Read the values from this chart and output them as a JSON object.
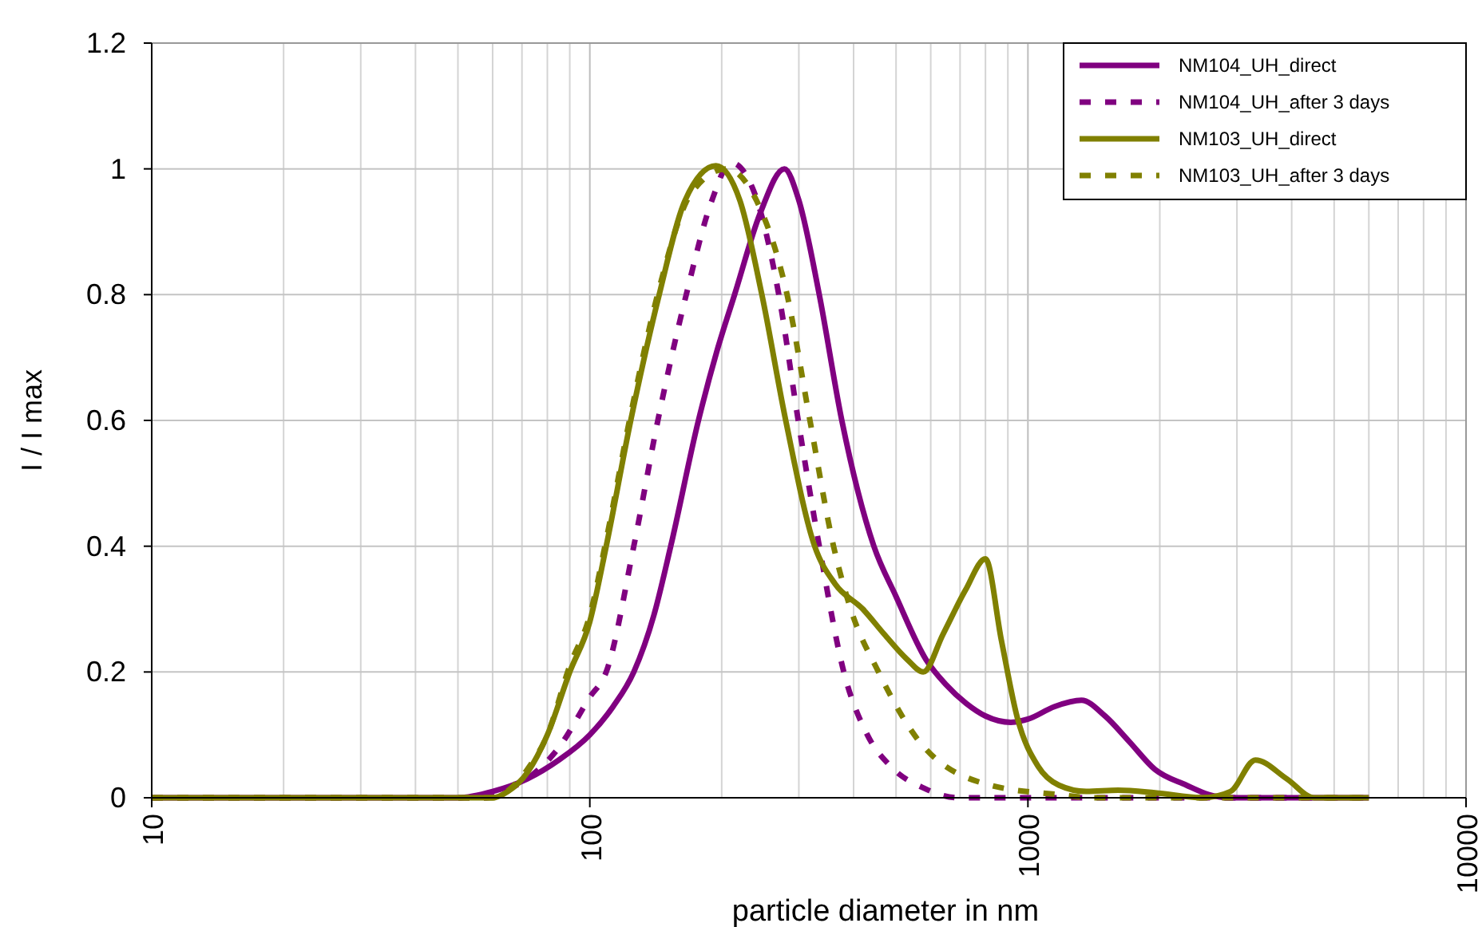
{
  "chart_data": {
    "type": "line",
    "xlabel": "particle diameter in nm",
    "ylabel": "I / I max",
    "log": "x",
    "xlim": [
      10,
      10000
    ],
    "xticks": [
      10,
      100,
      1000,
      10000
    ],
    "ylim": [
      0,
      1.2
    ],
    "yticks": [
      0,
      {
        "value": 0.2,
        "label": "0.2"
      },
      {
        "value": 0.4,
        "label": "0.4"
      },
      {
        "value": 0.6,
        "label": "0.6"
      },
      {
        "value": 0.8,
        "label": "0.8"
      },
      1,
      {
        "value": 1.2,
        "label": "1.2"
      }
    ],
    "grid": true,
    "legend": "top right",
    "series": [
      {
        "name": "NM104_UH_direct",
        "color": "#800080",
        "line_style": "solid",
        "x": [
          10,
          50,
          60,
          72,
          85,
          100,
          113,
          126,
          140,
          153,
          177,
          195,
          214,
          245,
          278,
          300,
          334,
          376,
          445,
          500,
          585,
          650,
          723,
          800,
          914,
          1000,
          1150,
          1325,
          1500,
          1700,
          1950,
          2300,
          2590,
          2890,
          6000
        ],
        "values": [
          0,
          0,
          0.01,
          0.03,
          0.06,
          0.1,
          0.145,
          0.2,
          0.29,
          0.4,
          0.6,
          0.71,
          0.8,
          0.93,
          1.0,
          0.95,
          0.8,
          0.6,
          0.4,
          0.32,
          0.22,
          0.18,
          0.15,
          0.13,
          0.12,
          0.125,
          0.145,
          0.155,
          0.13,
          0.09,
          0.045,
          0.02,
          0.005,
          0,
          0
        ]
      },
      {
        "name": "NM104_UH_after 3 days",
        "color": "#800080",
        "line_style": "dashed",
        "x": [
          10,
          58,
          66,
          75,
          85,
          100,
          109,
          126,
          143,
          166,
          190,
          210,
          235,
          270,
          299,
          334,
          380,
          430,
          486,
          580,
          694,
          6000
        ],
        "values": [
          0,
          0,
          0.015,
          0.04,
          0.08,
          0.16,
          0.2,
          0.4,
          0.6,
          0.8,
          0.95,
          1.01,
          0.97,
          0.8,
          0.6,
          0.4,
          0.2,
          0.1,
          0.05,
          0.015,
          0,
          0
        ]
      },
      {
        "name": "NM103_UH_direct",
        "color": "#808000",
        "line_style": "solid",
        "x": [
          10,
          60,
          65,
          72,
          80,
          90,
          100,
          109,
          124,
          144,
          165,
          194,
          220,
          247,
          280,
          326,
          363,
          420,
          470,
          530,
          577,
          640,
          720,
          800,
          870,
          946,
          1055,
          1177,
          1359,
          1607,
          1950,
          2500,
          2900,
          3305,
          3900,
          4500,
          6000
        ],
        "values": [
          0,
          0,
          0.01,
          0.04,
          0.1,
          0.2,
          0.28,
          0.4,
          0.6,
          0.8,
          0.95,
          1.005,
          0.95,
          0.8,
          0.6,
          0.4,
          0.34,
          0.3,
          0.26,
          0.22,
          0.2,
          0.26,
          0.33,
          0.38,
          0.25,
          0.127,
          0.05,
          0.02,
          0.01,
          0.012,
          0.008,
          0,
          0.01,
          0.06,
          0.03,
          0,
          0
        ]
      },
      {
        "name": "NM103_UH_after 3 days",
        "color": "#808000",
        "line_style": "dashed",
        "x": [
          10,
          60,
          66,
          72,
          80,
          90,
          100,
          109,
          124,
          144,
          170,
          205,
          240,
          282,
          318,
          360,
          394,
          456,
          572,
          820,
          1177,
          1400,
          6000
        ],
        "values": [
          0,
          0,
          0.015,
          0.045,
          0.1,
          0.21,
          0.29,
          0.41,
          0.61,
          0.81,
          0.96,
          1.0,
          0.95,
          0.8,
          0.6,
          0.4,
          0.3,
          0.2,
          0.085,
          0.02,
          0.005,
          0,
          0
        ]
      }
    ]
  }
}
